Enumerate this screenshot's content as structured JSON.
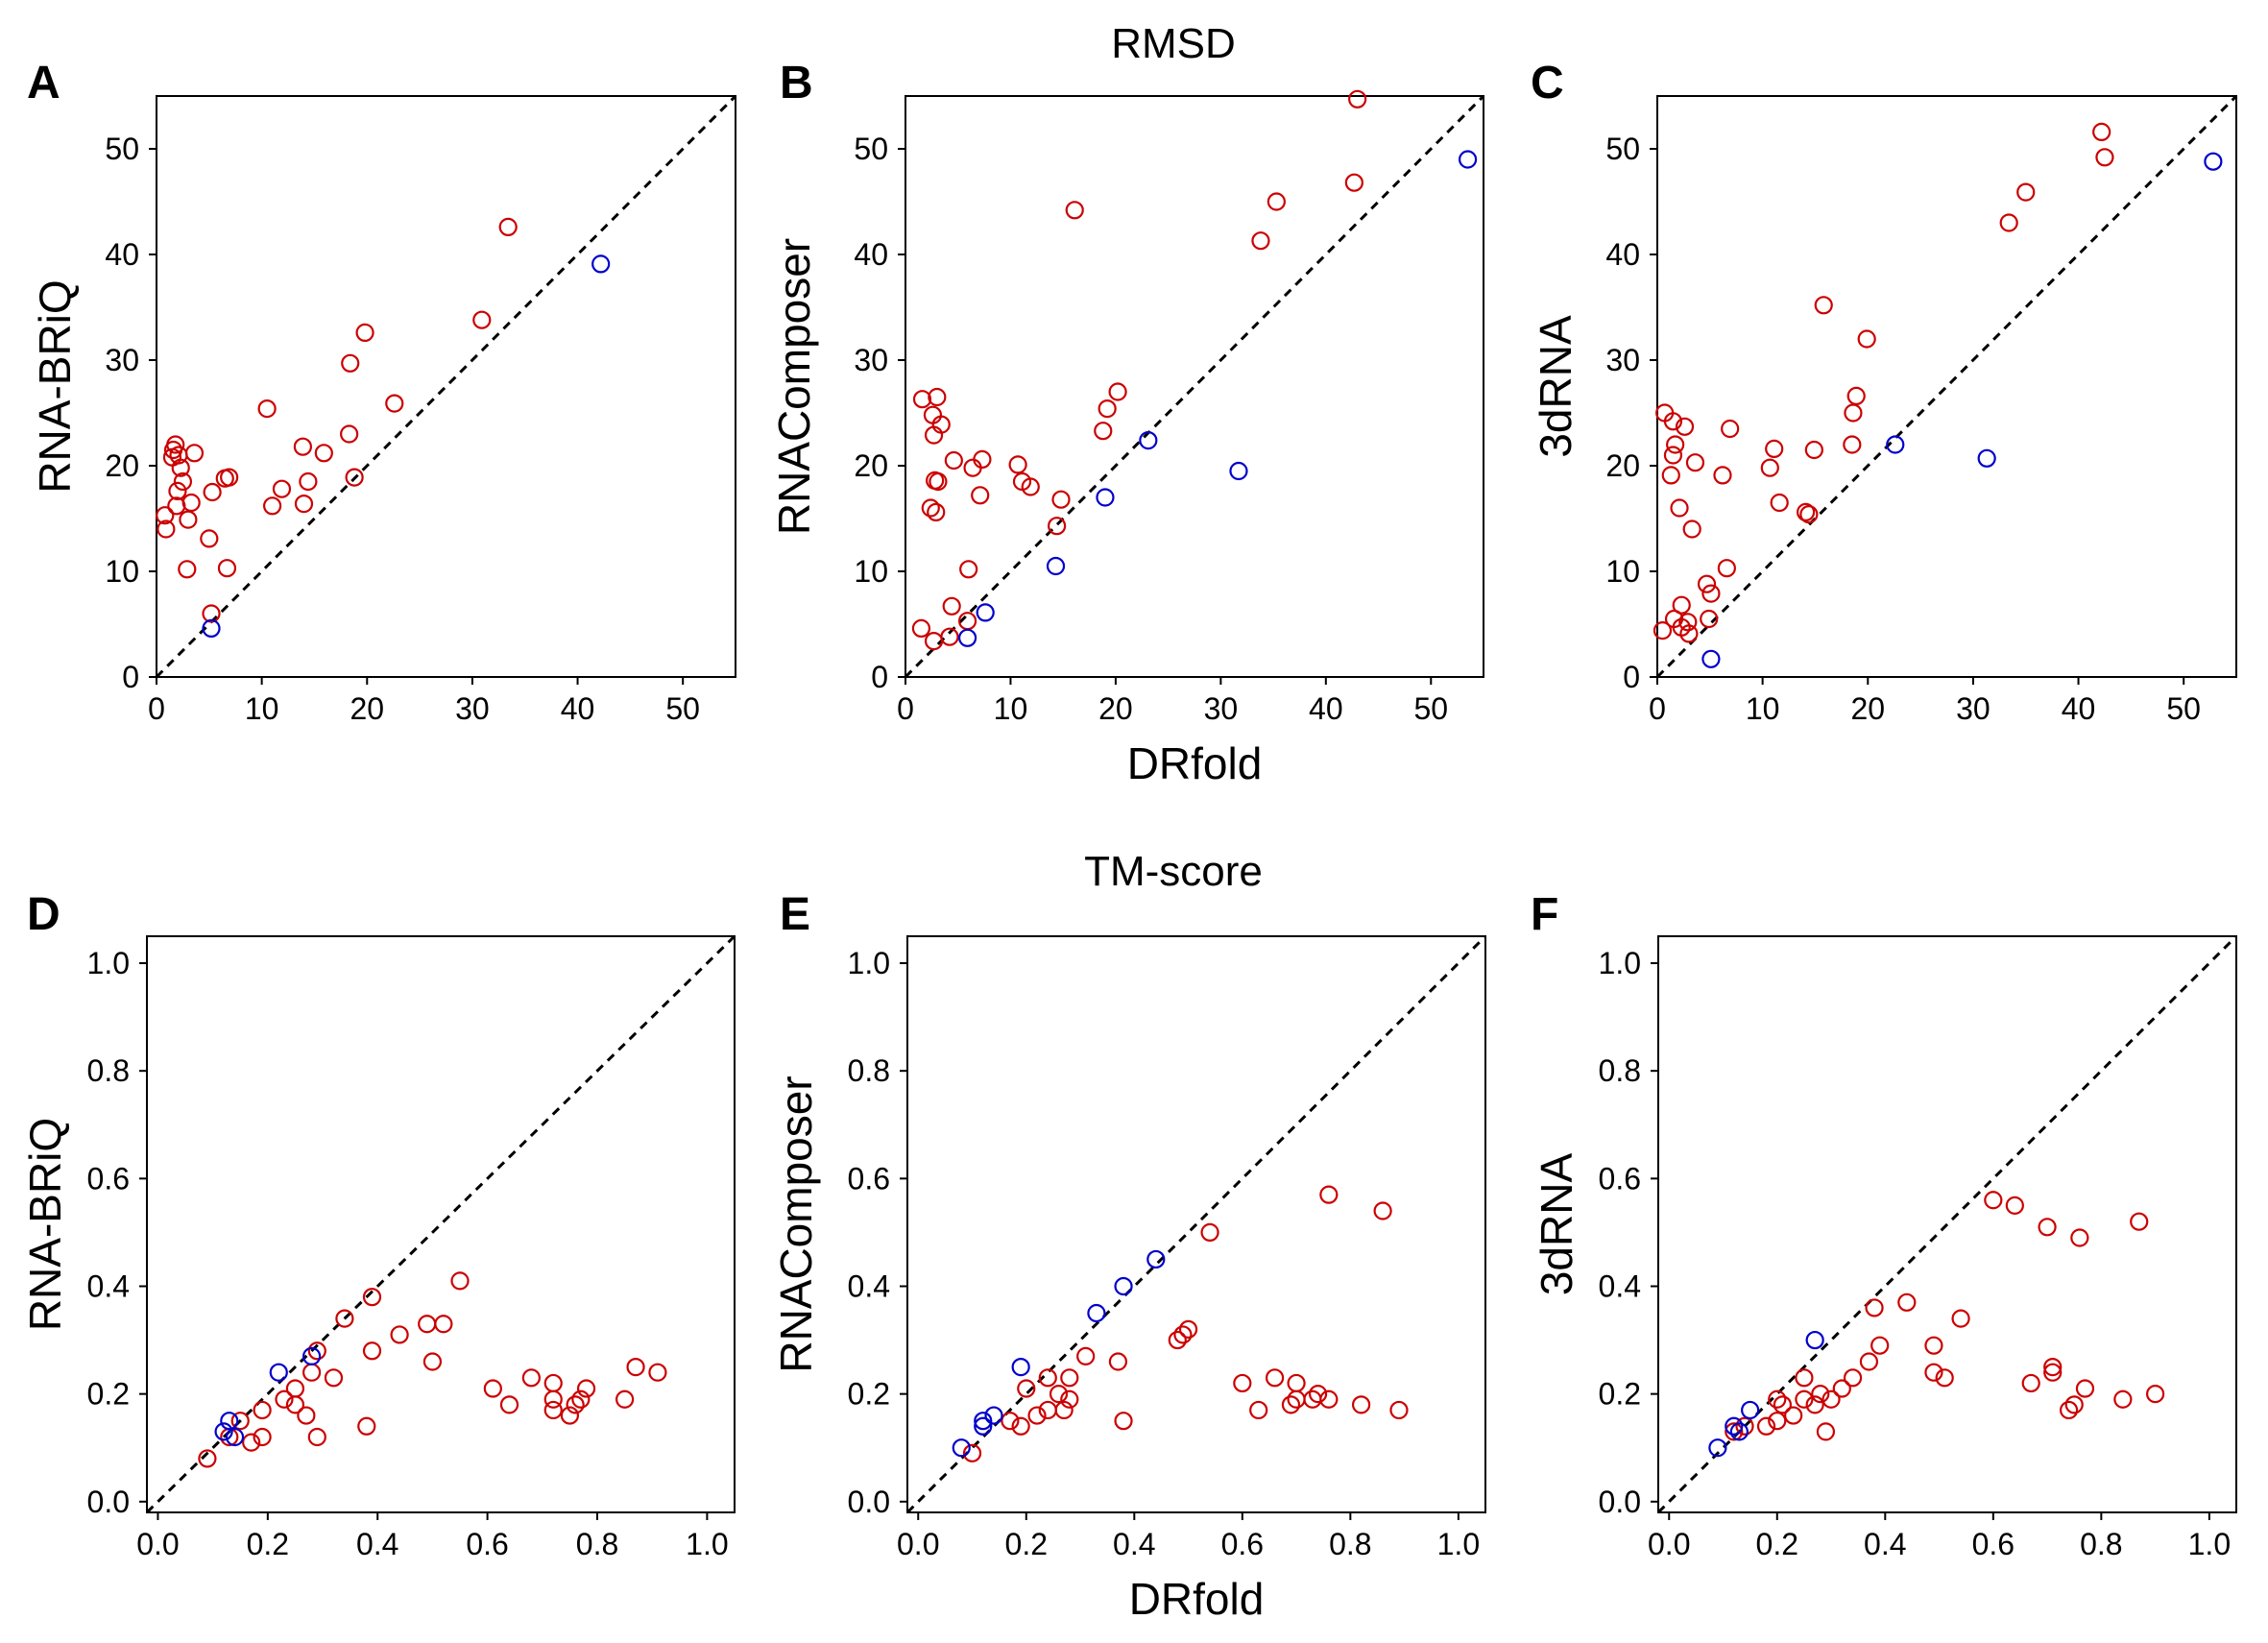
{
  "row_titles": [
    "RMSD",
    "TM-score"
  ],
  "colors": {
    "red": "#cc0000",
    "blue": "#0000cc",
    "axis": "#000000"
  },
  "chart_data": [
    {
      "panel": "A",
      "type": "scatter",
      "xlabel": "",
      "ylabel": "RNA-BRiQ",
      "xlim": [
        0,
        55
      ],
      "ylim": [
        0,
        55
      ],
      "ticks": [
        0,
        10,
        20,
        30,
        40,
        50
      ],
      "tick_labels": [
        "0",
        "10",
        "20",
        "30",
        "40",
        "50"
      ],
      "diagonal": true,
      "series": [
        {
          "color": "red",
          "points": [
            [
              0.9,
              14.0
            ],
            [
              0.8,
              15.3
            ],
            [
              1.8,
              22.0
            ],
            [
              1.6,
              21.5
            ],
            [
              2.1,
              21.0
            ],
            [
              1.5,
              20.8
            ],
            [
              2.3,
              19.8
            ],
            [
              2.5,
              18.5
            ],
            [
              2.0,
              17.6
            ],
            [
              1.9,
              16.2
            ],
            [
              3.0,
              14.9
            ],
            [
              3.3,
              16.5
            ],
            [
              3.6,
              21.2
            ],
            [
              5.3,
              17.5
            ],
            [
              6.5,
              18.8
            ],
            [
              6.9,
              18.9
            ],
            [
              5.0,
              13.1
            ],
            [
              2.9,
              10.2
            ],
            [
              6.7,
              10.3
            ],
            [
              5.2,
              6.0
            ],
            [
              10.5,
              25.4
            ],
            [
              11.0,
              16.2
            ],
            [
              11.9,
              17.8
            ],
            [
              13.9,
              21.8
            ],
            [
              14.0,
              16.4
            ],
            [
              14.4,
              18.5
            ],
            [
              15.9,
              21.2
            ],
            [
              18.3,
              23.0
            ],
            [
              18.4,
              29.7
            ],
            [
              18.8,
              18.9
            ],
            [
              19.8,
              32.6
            ],
            [
              22.6,
              25.9
            ],
            [
              30.9,
              33.8
            ],
            [
              33.4,
              42.6
            ]
          ]
        },
        {
          "color": "blue",
          "points": [
            [
              5.2,
              4.6
            ],
            [
              42.2,
              39.1
            ]
          ]
        }
      ]
    },
    {
      "panel": "B",
      "type": "scatter",
      "xlabel": "DRfold",
      "ylabel": "RNAComposer",
      "xlim": [
        0,
        55
      ],
      "ylim": [
        0,
        55
      ],
      "ticks": [
        0,
        10,
        20,
        30,
        40,
        50
      ],
      "tick_labels": [
        "0",
        "10",
        "20",
        "30",
        "40",
        "50"
      ],
      "diagonal": true,
      "series": [
        {
          "color": "red",
          "points": [
            [
              1.6,
              26.3
            ],
            [
              3.0,
              26.5
            ],
            [
              2.6,
              24.8
            ],
            [
              3.4,
              23.9
            ],
            [
              2.7,
              22.9
            ],
            [
              4.6,
              20.5
            ],
            [
              6.4,
              19.8
            ],
            [
              7.3,
              20.6
            ],
            [
              2.8,
              18.6
            ],
            [
              3.1,
              18.5
            ],
            [
              2.4,
              16.0
            ],
            [
              2.9,
              15.6
            ],
            [
              7.1,
              17.2
            ],
            [
              1.5,
              4.6
            ],
            [
              2.7,
              3.4
            ],
            [
              4.2,
              3.8
            ],
            [
              4.4,
              6.7
            ],
            [
              5.9,
              5.3
            ],
            [
              6.0,
              10.2
            ],
            [
              10.7,
              20.1
            ],
            [
              11.1,
              18.5
            ],
            [
              11.9,
              18.0
            ],
            [
              14.4,
              14.3
            ],
            [
              14.8,
              16.8
            ],
            [
              16.1,
              44.2
            ],
            [
              18.8,
              23.3
            ],
            [
              19.2,
              25.4
            ],
            [
              20.2,
              27.0
            ],
            [
              33.8,
              41.3
            ],
            [
              35.3,
              45.0
            ],
            [
              42.7,
              46.8
            ],
            [
              43.0,
              54.7
            ]
          ]
        },
        {
          "color": "blue",
          "points": [
            [
              5.9,
              3.7
            ],
            [
              7.6,
              6.1
            ],
            [
              14.3,
              10.5
            ],
            [
              19.0,
              17.0
            ],
            [
              23.1,
              22.4
            ],
            [
              31.7,
              19.5
            ],
            [
              53.5,
              49.0
            ]
          ]
        }
      ]
    },
    {
      "panel": "C",
      "type": "scatter",
      "xlabel": "",
      "ylabel": "3dRNA",
      "xlim": [
        0,
        55
      ],
      "ylim": [
        0,
        55
      ],
      "ticks": [
        0,
        10,
        20,
        30,
        40,
        50
      ],
      "tick_labels": [
        "0",
        "10",
        "20",
        "30",
        "40",
        "50"
      ],
      "diagonal": true,
      "series": [
        {
          "color": "red",
          "points": [
            [
              0.7,
              25.0
            ],
            [
              1.5,
              24.2
            ],
            [
              2.6,
              23.7
            ],
            [
              1.7,
              22.0
            ],
            [
              1.5,
              21.0
            ],
            [
              3.6,
              20.3
            ],
            [
              1.3,
              19.1
            ],
            [
              2.1,
              16.0
            ],
            [
              3.3,
              14.0
            ],
            [
              0.5,
              4.4
            ],
            [
              1.6,
              5.5
            ],
            [
              2.3,
              6.8
            ],
            [
              2.3,
              4.7
            ],
            [
              2.9,
              5.2
            ],
            [
              3.0,
              4.1
            ],
            [
              4.9,
              5.5
            ],
            [
              4.7,
              8.8
            ],
            [
              5.1,
              7.9
            ],
            [
              6.6,
              10.3
            ],
            [
              6.2,
              19.1
            ],
            [
              6.9,
              23.5
            ],
            [
              10.7,
              19.8
            ],
            [
              11.1,
              21.6
            ],
            [
              11.6,
              16.5
            ],
            [
              14.1,
              15.6
            ],
            [
              14.4,
              15.4
            ],
            [
              14.9,
              21.5
            ],
            [
              15.8,
              35.2
            ],
            [
              18.5,
              22.0
            ],
            [
              18.6,
              25.0
            ],
            [
              18.9,
              26.6
            ],
            [
              19.9,
              32.0
            ],
            [
              33.4,
              43.0
            ],
            [
              35.0,
              45.9
            ],
            [
              42.2,
              51.6
            ],
            [
              42.5,
              49.2
            ]
          ]
        },
        {
          "color": "blue",
          "points": [
            [
              5.1,
              1.7
            ],
            [
              22.6,
              22.0
            ],
            [
              31.3,
              20.7
            ],
            [
              52.8,
              48.8
            ]
          ]
        }
      ]
    },
    {
      "panel": "D",
      "type": "scatter",
      "xlabel": "",
      "ylabel": "RNA-BRiQ",
      "xlim": [
        -0.02,
        1.05
      ],
      "ylim": [
        -0.02,
        1.05
      ],
      "ticks": [
        0.0,
        0.2,
        0.4,
        0.6,
        0.8,
        1.0
      ],
      "tick_labels": [
        "0.0",
        "0.2",
        "0.4",
        "0.6",
        "0.8",
        "1.0"
      ],
      "diagonal": true,
      "series": [
        {
          "color": "red",
          "points": [
            [
              0.09,
              0.08
            ],
            [
              0.13,
              0.12
            ],
            [
              0.15,
              0.15
            ],
            [
              0.17,
              0.11
            ],
            [
              0.19,
              0.12
            ],
            [
              0.19,
              0.17
            ],
            [
              0.23,
              0.19
            ],
            [
              0.25,
              0.18
            ],
            [
              0.25,
              0.21
            ],
            [
              0.27,
              0.16
            ],
            [
              0.28,
              0.24
            ],
            [
              0.29,
              0.12
            ],
            [
              0.29,
              0.28
            ],
            [
              0.32,
              0.23
            ],
            [
              0.34,
              0.34
            ],
            [
              0.38,
              0.14
            ],
            [
              0.39,
              0.28
            ],
            [
              0.39,
              0.38
            ],
            [
              0.44,
              0.31
            ],
            [
              0.49,
              0.33
            ],
            [
              0.5,
              0.26
            ],
            [
              0.52,
              0.33
            ],
            [
              0.55,
              0.41
            ],
            [
              0.61,
              0.21
            ],
            [
              0.64,
              0.18
            ],
            [
              0.68,
              0.23
            ],
            [
              0.72,
              0.17
            ],
            [
              0.72,
              0.19
            ],
            [
              0.72,
              0.22
            ],
            [
              0.75,
              0.16
            ],
            [
              0.76,
              0.18
            ],
            [
              0.77,
              0.19
            ],
            [
              0.78,
              0.21
            ],
            [
              0.85,
              0.19
            ],
            [
              0.87,
              0.25
            ],
            [
              0.91,
              0.24
            ]
          ]
        },
        {
          "color": "blue",
          "points": [
            [
              0.12,
              0.13
            ],
            [
              0.13,
              0.15
            ],
            [
              0.14,
              0.12
            ],
            [
              0.22,
              0.24
            ],
            [
              0.28,
              0.27
            ]
          ]
        }
      ]
    },
    {
      "panel": "E",
      "type": "scatter",
      "xlabel": "DRfold",
      "ylabel": "RNAComposer",
      "xlim": [
        -0.02,
        1.05
      ],
      "ylim": [
        -0.02,
        1.05
      ],
      "ticks": [
        0.0,
        0.2,
        0.4,
        0.6,
        0.8,
        1.0
      ],
      "tick_labels": [
        "0.0",
        "0.2",
        "0.4",
        "0.6",
        "0.8",
        "1.0"
      ],
      "diagonal": true,
      "series": [
        {
          "color": "red",
          "points": [
            [
              0.1,
              0.09
            ],
            [
              0.17,
              0.15
            ],
            [
              0.19,
              0.14
            ],
            [
              0.2,
              0.21
            ],
            [
              0.22,
              0.16
            ],
            [
              0.24,
              0.17
            ],
            [
              0.24,
              0.23
            ],
            [
              0.26,
              0.2
            ],
            [
              0.27,
              0.17
            ],
            [
              0.28,
              0.19
            ],
            [
              0.28,
              0.23
            ],
            [
              0.31,
              0.27
            ],
            [
              0.37,
              0.26
            ],
            [
              0.38,
              0.15
            ],
            [
              0.48,
              0.3
            ],
            [
              0.49,
              0.31
            ],
            [
              0.5,
              0.32
            ],
            [
              0.54,
              0.5
            ],
            [
              0.6,
              0.22
            ],
            [
              0.63,
              0.17
            ],
            [
              0.66,
              0.23
            ],
            [
              0.69,
              0.18
            ],
            [
              0.7,
              0.19
            ],
            [
              0.7,
              0.22
            ],
            [
              0.73,
              0.19
            ],
            [
              0.74,
              0.2
            ],
            [
              0.76,
              0.19
            ],
            [
              0.76,
              0.57
            ],
            [
              0.82,
              0.18
            ],
            [
              0.86,
              0.54
            ],
            [
              0.89,
              0.17
            ]
          ]
        },
        {
          "color": "blue",
          "points": [
            [
              0.08,
              0.1
            ],
            [
              0.12,
              0.14
            ],
            [
              0.12,
              0.15
            ],
            [
              0.14,
              0.16
            ],
            [
              0.19,
              0.25
            ],
            [
              0.33,
              0.35
            ],
            [
              0.38,
              0.4
            ],
            [
              0.44,
              0.45
            ]
          ]
        }
      ]
    },
    {
      "panel": "F",
      "type": "scatter",
      "xlabel": "",
      "ylabel": "3dRNA",
      "xlim": [
        -0.02,
        1.05
      ],
      "ylim": [
        -0.02,
        1.05
      ],
      "ticks": [
        0.0,
        0.2,
        0.4,
        0.6,
        0.8,
        1.0
      ],
      "tick_labels": [
        "0.0",
        "0.2",
        "0.4",
        "0.6",
        "0.8",
        "1.0"
      ],
      "diagonal": true,
      "series": [
        {
          "color": "red",
          "points": [
            [
              0.12,
              0.13
            ],
            [
              0.14,
              0.14
            ],
            [
              0.18,
              0.14
            ],
            [
              0.2,
              0.15
            ],
            [
              0.2,
              0.19
            ],
            [
              0.21,
              0.18
            ],
            [
              0.23,
              0.16
            ],
            [
              0.25,
              0.19
            ],
            [
              0.25,
              0.23
            ],
            [
              0.27,
              0.18
            ],
            [
              0.28,
              0.2
            ],
            [
              0.29,
              0.13
            ],
            [
              0.3,
              0.19
            ],
            [
              0.32,
              0.21
            ],
            [
              0.34,
              0.23
            ],
            [
              0.37,
              0.26
            ],
            [
              0.38,
              0.36
            ],
            [
              0.39,
              0.29
            ],
            [
              0.44,
              0.37
            ],
            [
              0.49,
              0.29
            ],
            [
              0.49,
              0.24
            ],
            [
              0.51,
              0.23
            ],
            [
              0.54,
              0.34
            ],
            [
              0.6,
              0.56
            ],
            [
              0.64,
              0.55
            ],
            [
              0.67,
              0.22
            ],
            [
              0.7,
              0.51
            ],
            [
              0.71,
              0.24
            ],
            [
              0.71,
              0.25
            ],
            [
              0.74,
              0.17
            ],
            [
              0.75,
              0.18
            ],
            [
              0.76,
              0.49
            ],
            [
              0.77,
              0.21
            ],
            [
              0.84,
              0.19
            ],
            [
              0.87,
              0.52
            ],
            [
              0.9,
              0.2
            ]
          ]
        },
        {
          "color": "blue",
          "points": [
            [
              0.09,
              0.1
            ],
            [
              0.12,
              0.14
            ],
            [
              0.13,
              0.13
            ],
            [
              0.15,
              0.17
            ],
            [
              0.27,
              0.3
            ]
          ]
        }
      ]
    }
  ]
}
